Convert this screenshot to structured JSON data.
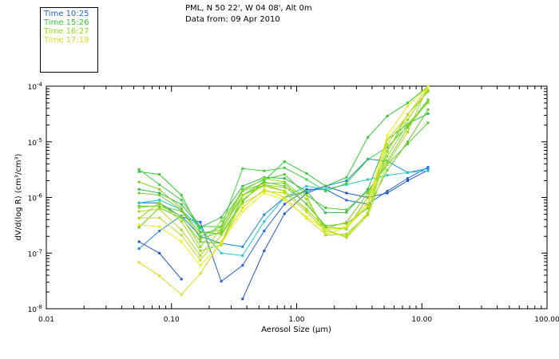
{
  "header": {
    "title": "PML, N 50 22', W 04 08', Alt 0m",
    "subtitle": "Data from: 09 Apr 2010"
  },
  "legend": [
    {
      "label": "Time 10:25",
      "color": "#2266d8"
    },
    {
      "label": "Time 15:26",
      "color": "#33cc33"
    },
    {
      "label": "Time 16:27",
      "color": "#88dd22"
    },
    {
      "label": "Time 17:19",
      "color": "#dddd11"
    }
  ],
  "chart_data": {
    "type": "line",
    "xscale": "log",
    "yscale": "log",
    "xlim": [
      0.01,
      100
    ],
    "ylim": [
      1e-08,
      0.0001
    ],
    "xlabel": "Aerosol Size (μm)",
    "ylabel": "dV/d(log R) (cm³/cm³)",
    "xtick_labels": [
      "0.01",
      "0.10",
      "1.00",
      "10.00",
      "100.00"
    ],
    "ytick_labels": [
      {
        "mantissa": "10",
        "exp": "-8"
      },
      {
        "mantissa": "10",
        "exp": "-7"
      },
      {
        "mantissa": "10",
        "exp": "-6"
      },
      {
        "mantissa": "10",
        "exp": "-5"
      },
      {
        "mantissa": "10",
        "exp": "-4"
      }
    ],
    "x": [
      0.055,
      0.08,
      0.12,
      0.17,
      0.25,
      0.37,
      0.55,
      0.8,
      1.2,
      1.7,
      2.5,
      3.7,
      5.3,
      7.7,
      11.2
    ],
    "series": [
      {
        "color": "#2255cc",
        "values": [
          1.6e-07,
          1e-07,
          3.4e-08,
          null,
          null,
          1.5e-08,
          1.1e-07,
          5.1e-07,
          1.2e-06,
          1.6e-06,
          1.2e-06,
          1e-06,
          1.2e-06,
          2e-06,
          3.1e-06
        ]
      },
      {
        "color": "#2266dd",
        "values": [
          8e-07,
          8e-07,
          4.5e-07,
          3.6e-07,
          3.1e-08,
          6e-08,
          2.5e-07,
          7.6e-07,
          1.4e-06,
          1.4e-06,
          8.9e-07,
          7.6e-07,
          1.3e-06,
          2.2e-06,
          3.5e-06
        ]
      },
      {
        "color": "#1e88d8",
        "values": [
          1.2e-07,
          2.5e-07,
          4.7e-07,
          2e-07,
          1.5e-07,
          1.3e-07,
          4.9e-07,
          1e-06,
          1.3e-06,
          1.6e-06,
          2e-06,
          4.9e-06,
          4.5e-06,
          2.8e-06,
          3.3e-06
        ]
      },
      {
        "color": "#22cccc",
        "values": [
          8e-07,
          9e-07,
          6e-07,
          2.8e-07,
          1e-07,
          9e-08,
          3.7e-07,
          1e-06,
          1.6e-06,
          1.4e-06,
          1.7e-06,
          2.1e-06,
          2.5e-06,
          2.8e-06,
          3e-06
        ]
      },
      {
        "color": "#33cc33",
        "values": [
          2.9e-06,
          2.6e-06,
          1.1e-06,
          2.4e-07,
          2.2e-07,
          8.5e-07,
          2e-06,
          4.4e-06,
          2.7e-06,
          1.6e-06,
          2.3e-06,
          1.2e-05,
          2.9e-05,
          5e-05,
          0.0001
        ]
      },
      {
        "color": "#44cc44",
        "values": [
          3.2e-06,
          1.7e-06,
          9e-07,
          3e-07,
          3e-07,
          3.3e-06,
          3e-06,
          3.4e-06,
          2.1e-06,
          1.3e-06,
          1.8e-06,
          4.8e-06,
          8e-06,
          1.9e-05,
          5.7e-05
        ]
      },
      {
        "color": "#33bb55",
        "values": [
          1.4e-06,
          1.2e-06,
          7.5e-07,
          2.9e-07,
          4.4e-07,
          1.6e-06,
          2.3e-06,
          2.2e-06,
          1.3e-06,
          5.3e-07,
          5.4e-07,
          1.4e-06,
          1.1e-05,
          2.1e-05,
          3.2e-05
        ]
      },
      {
        "color": "#55cc33",
        "values": [
          7e-07,
          7e-07,
          5.7e-07,
          2e-07,
          3e-07,
          1.4e-06,
          2.1e-06,
          2.6e-06,
          1.1e-06,
          6.5e-07,
          6e-07,
          1.3e-06,
          3.9e-06,
          9.2e-06,
          2.2e-05
        ]
      },
      {
        "color": "#66cc22",
        "values": [
          2.9e-07,
          6.5e-07,
          4.3e-07,
          1.6e-07,
          1.5e-07,
          1.1e-06,
          1.9e-06,
          1.6e-06,
          7.7e-07,
          3.1e-07,
          3.4e-07,
          6.4e-07,
          3.1e-06,
          1e-05,
          3.8e-05
        ]
      },
      {
        "color": "#77cc33",
        "values": [
          1.2e-06,
          1.1e-06,
          6e-07,
          2.3e-07,
          2.6e-07,
          1.3e-06,
          1.8e-06,
          1.8e-06,
          7.5e-07,
          3e-07,
          2.7e-07,
          1e-06,
          6.6e-06,
          3.1e-05,
          8e-05
        ]
      },
      {
        "color": "#88cc22",
        "values": [
          1.9e-06,
          1.4e-06,
          6.4e-07,
          1.8e-07,
          2.4e-07,
          1.1e-06,
          1.7e-06,
          1.3e-06,
          6.1e-07,
          2.8e-07,
          3.6e-07,
          1.2e-06,
          4.4e-06,
          1.8e-05,
          5.4e-05
        ]
      },
      {
        "color": "#88dd22",
        "values": [
          6.6e-07,
          7.2e-07,
          4.6e-07,
          1.3e-07,
          3.8e-07,
          1.3e-06,
          2.2e-06,
          1.9e-06,
          9.3e-07,
          2.7e-07,
          2.8e-07,
          8e-07,
          5.5e-06,
          2.1e-05,
          5e-05
        ]
      },
      {
        "color": "#99dd11",
        "values": [
          4.2e-07,
          8.1e-07,
          3.7e-07,
          1.1e-07,
          1.4e-07,
          9.2e-07,
          1.7e-06,
          1.5e-06,
          1.1e-06,
          2.1e-07,
          2.2e-07,
          5e-07,
          6.9e-06,
          2.5e-05,
          8.5e-05
        ]
      },
      {
        "color": "#aadd11",
        "values": [
          5.6e-07,
          6.2e-07,
          2.6e-07,
          9e-08,
          2.8e-07,
          1.1e-06,
          1.6e-06,
          1.3e-06,
          6.2e-07,
          2.7e-07,
          1.9e-07,
          4.8e-07,
          4e-06,
          1.5e-05,
          0.0001
        ]
      },
      {
        "color": "#bbdd11",
        "values": [
          4.3e-07,
          4.3e-07,
          2.1e-07,
          7.5e-08,
          2.1e-07,
          7.7e-07,
          1.3e-06,
          1.2e-06,
          5.5e-07,
          2.5e-07,
          2e-07,
          5.3e-07,
          9e-06,
          3e-05,
          0.0001
        ]
      },
      {
        "color": "#dddd11",
        "values": [
          6.8e-08,
          3.9e-08,
          1.8e-08,
          4.3e-08,
          1.6e-07,
          6.5e-07,
          1.4e-06,
          1e-06,
          4.2e-07,
          2.2e-07,
          2.9e-07,
          7e-07,
          1.1e-05,
          3e-05,
          0.0001
        ]
      },
      {
        "color": "#eeee11",
        "values": [
          3.2e-07,
          3e-07,
          1.6e-07,
          6e-08,
          1.5e-07,
          5.6e-07,
          1.2e-06,
          9e-07,
          4.5e-07,
          2.6e-07,
          3e-07,
          8e-07,
          1.3e-05,
          4.4e-05,
          0.0001
        ]
      }
    ]
  }
}
